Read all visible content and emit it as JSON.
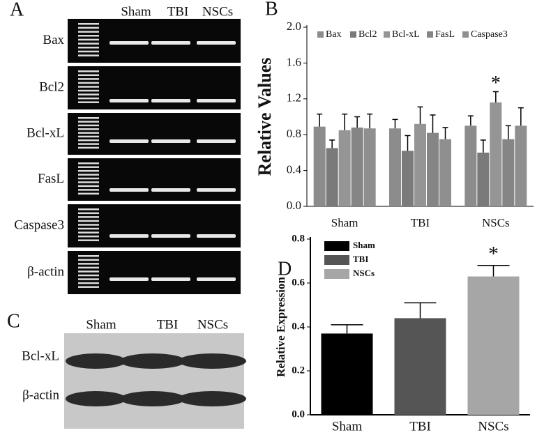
{
  "gel": {
    "label": "A",
    "lanes": [
      "Sham",
      "TBI",
      "NSCs"
    ],
    "genes": [
      "Bax",
      "Bcl2",
      "Bcl-xL",
      "FasL",
      "Caspase3",
      "β-actin"
    ]
  },
  "western": {
    "label": "C",
    "lanes": [
      "Sham",
      "TBI",
      "NSCs"
    ],
    "proteins": [
      "Bcl-xL",
      "β-actin"
    ]
  },
  "chart_data": [
    {
      "type": "bar",
      "label": "B",
      "y_label": "Relative Values",
      "categories": [
        "Sham",
        "TBI",
        "NSCs"
      ],
      "series": [
        {
          "name": "Bax",
          "color": "#8c8c8c",
          "values": [
            0.89,
            0.87,
            0.9
          ],
          "errors": [
            0.14,
            0.1,
            0.11
          ]
        },
        {
          "name": "Bcl2",
          "color": "#7a7a7a",
          "values": [
            0.65,
            0.62,
            0.6
          ],
          "errors": [
            0.09,
            0.17,
            0.14
          ]
        },
        {
          "name": "Bcl-xL",
          "color": "#959595",
          "values": [
            0.85,
            0.92,
            1.16
          ],
          "errors": [
            0.18,
            0.19,
            0.12
          ]
        },
        {
          "name": "FasL",
          "color": "#858585",
          "values": [
            0.88,
            0.82,
            0.75
          ],
          "errors": [
            0.12,
            0.2,
            0.15
          ]
        },
        {
          "name": "Caspase3",
          "color": "#8f8f8f",
          "values": [
            0.87,
            0.75,
            0.9
          ],
          "errors": [
            0.16,
            0.13,
            0.2
          ]
        }
      ],
      "annotation": "*",
      "ylim": [
        0,
        2.0
      ],
      "yticks": [
        {
          "value": 0,
          "label": "0.0"
        },
        0.4,
        0.8,
        1.2,
        1.6,
        {
          "value": 2,
          "label": "2.0"
        }
      ]
    },
    {
      "type": "bar",
      "label": "D",
      "y_label": "Relative Expression",
      "categories": [
        "Sham",
        "TBI",
        "NSCs"
      ],
      "values": [
        0.37,
        0.44,
        0.63
      ],
      "errors": [
        0.04,
        0.07,
        0.05
      ],
      "colors": [
        "#000000",
        "#555555",
        "#a6a6a6"
      ],
      "annotation": "*",
      "ylim": [
        0,
        0.8
      ],
      "yticks": [
        {
          "value": 0,
          "label": "0.0"
        },
        0.2,
        0.4,
        0.6,
        0.8
      ]
    }
  ]
}
